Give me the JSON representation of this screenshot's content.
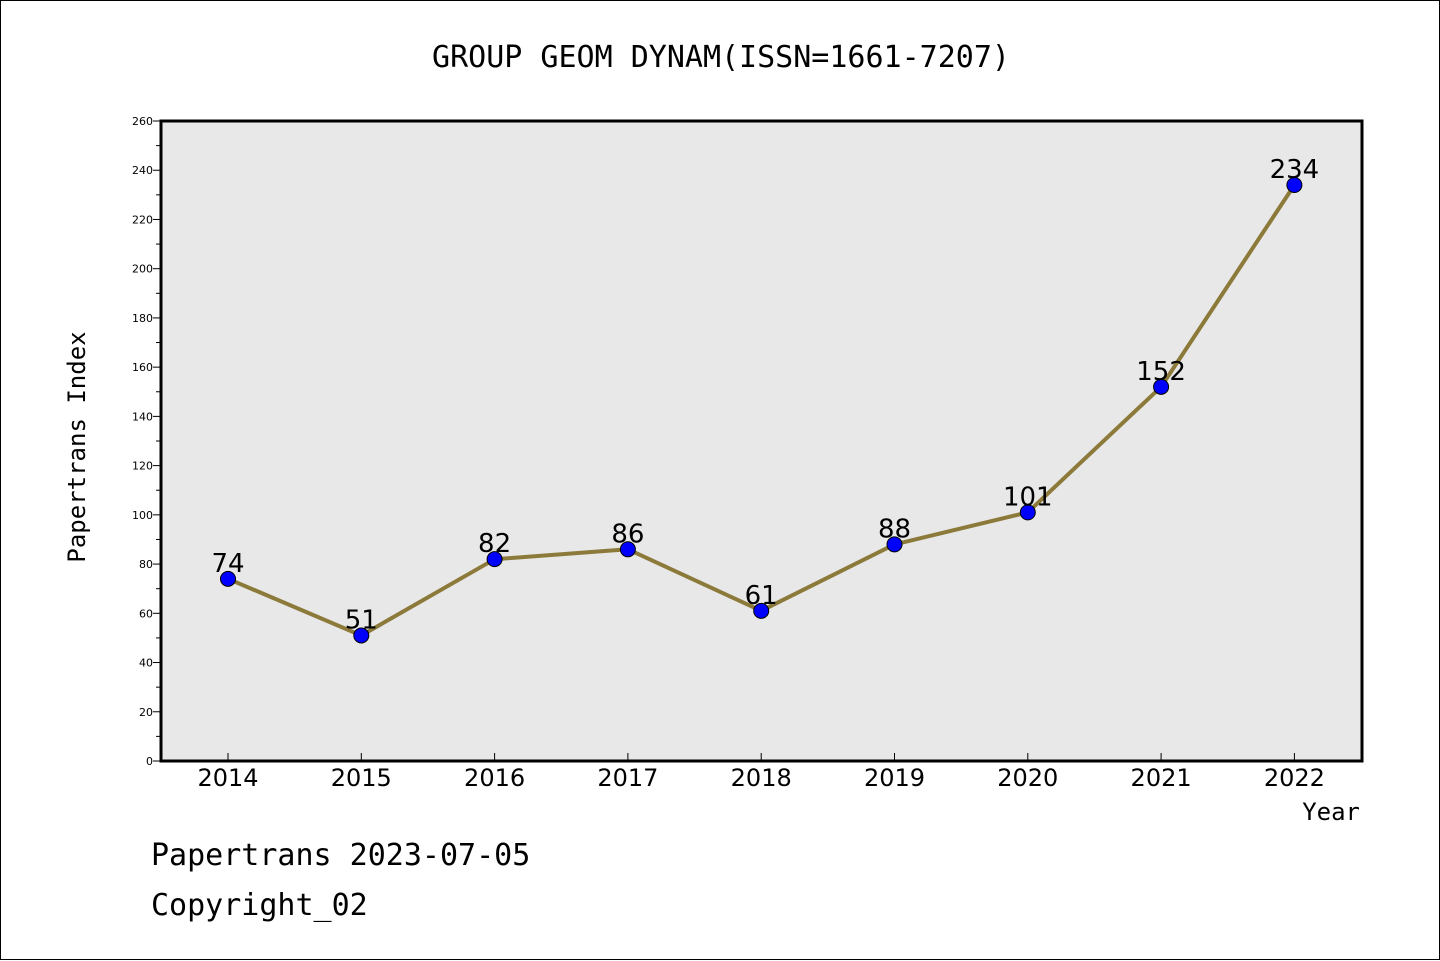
{
  "chart_data": {
    "type": "line",
    "title": "GROUP GEOM DYNAM(ISSN=1661-7207)",
    "xlabel": "Year",
    "ylabel": "Papertrans Index",
    "categories": [
      "2014",
      "2015",
      "2016",
      "2017",
      "2018",
      "2019",
      "2020",
      "2021",
      "2022"
    ],
    "values": [
      74,
      51,
      82,
      86,
      61,
      88,
      101,
      152,
      234
    ],
    "ylim": [
      0,
      260
    ],
    "ytick_step": 20,
    "yticks": [
      "0",
      "20",
      "40",
      "60",
      "80",
      "100",
      "120",
      "140",
      "160",
      "180",
      "200",
      "220",
      "240",
      "260"
    ],
    "grid": false,
    "legend": "none",
    "colors": {
      "plot_background": "#e8e8e8",
      "line": "#8c7a3a",
      "marker": "#0000ff"
    }
  },
  "footer": {
    "line1": "Papertrans 2023-07-05",
    "line2": "Copyright_02"
  }
}
